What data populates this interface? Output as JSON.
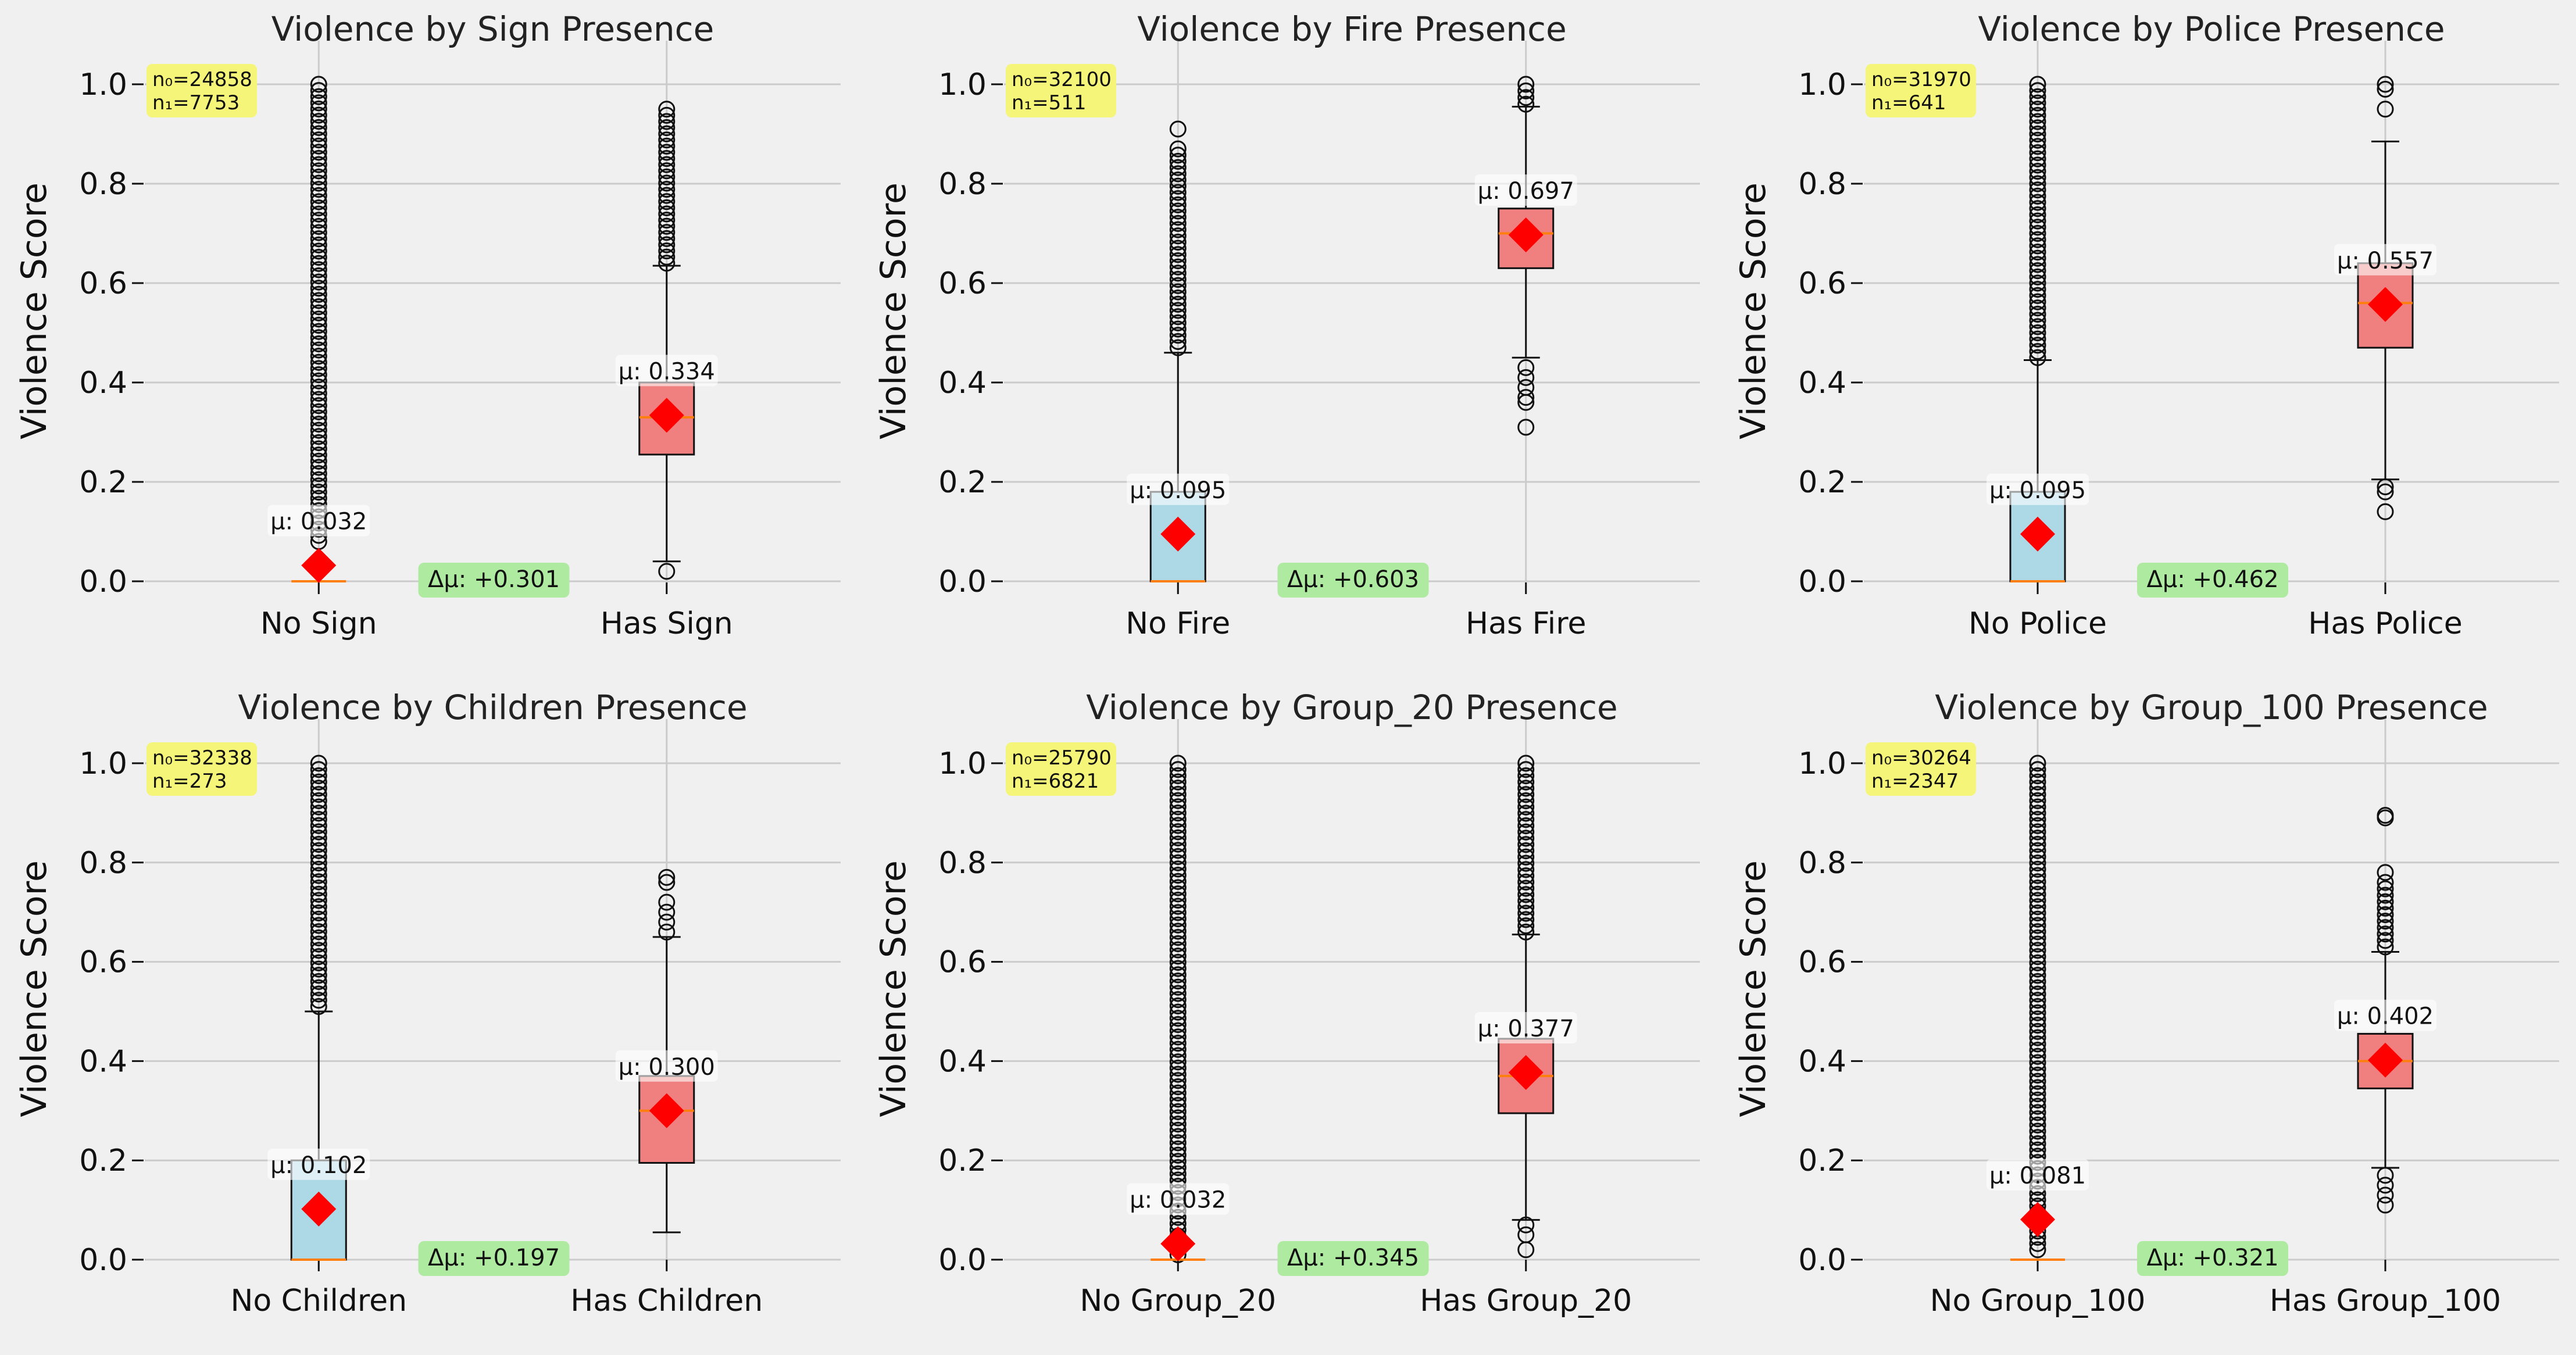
{
  "colors": {
    "background": "#f0f0f0",
    "grid": "#cbcbcb",
    "box_no": "#add8e6",
    "box_has": "#f08080",
    "mean_marker": "#ff0000",
    "median_line": "#ff7f0e",
    "count_badge": "#f5f57a",
    "delta_badge": "#aeeaa0"
  },
  "chart_data": [
    {
      "type": "box",
      "title": "Violence by Sign Presence",
      "ylabel": "Violence Score",
      "ylim": [
        0,
        1.05
      ],
      "yticks": [
        "0.0",
        "0.2",
        "0.4",
        "0.6",
        "0.8",
        "1.0"
      ],
      "categories": [
        "No Sign",
        "Has Sign"
      ],
      "counts": [
        "n₀=24858",
        "n₁=7753"
      ],
      "delta_label": "Δμ: +0.301",
      "groups": [
        {
          "q1": 0.0,
          "median": 0.0,
          "q3": 0.0,
          "whisker_low": 0.0,
          "whisker_high": 0.0,
          "outlier_range": [
            0.08,
            1.0
          ],
          "mean": 0.032,
          "mean_label": "μ: 0.032"
        },
        {
          "q1": 0.255,
          "median": 0.33,
          "q3": 0.4,
          "whisker_low": 0.04,
          "whisker_high": 0.635,
          "outlier_range": [
            0.64,
            0.95
          ],
          "outliers": [
            0.02
          ],
          "mean": 0.334,
          "mean_label": "μ: 0.334"
        }
      ]
    },
    {
      "type": "box",
      "title": "Violence by Fire Presence",
      "ylabel": "Violence Score",
      "ylim": [
        0,
        1.05
      ],
      "yticks": [
        "0.0",
        "0.2",
        "0.4",
        "0.6",
        "0.8",
        "1.0"
      ],
      "categories": [
        "No Fire",
        "Has Fire"
      ],
      "counts": [
        "n₀=32100",
        "n₁=511"
      ],
      "delta_label": "Δμ: +0.603",
      "groups": [
        {
          "q1": 0.0,
          "median": 0.0,
          "q3": 0.18,
          "whisker_low": 0.0,
          "whisker_high": 0.46,
          "outlier_range": [
            0.47,
            0.87
          ],
          "outliers": [
            0.91
          ],
          "mean": 0.095,
          "mean_label": "μ: 0.095"
        },
        {
          "q1": 0.63,
          "median": 0.7,
          "q3": 0.75,
          "whisker_low": 0.45,
          "whisker_high": 0.955,
          "outlier_range": [
            0.96,
            1.0
          ],
          "outliers": [
            0.43,
            0.41,
            0.39,
            0.37,
            0.36,
            0.31
          ],
          "mean": 0.697,
          "mean_label": "μ: 0.697"
        }
      ]
    },
    {
      "type": "box",
      "title": "Violence by Police Presence",
      "ylabel": "Violence Score",
      "ylim": [
        0,
        1.05
      ],
      "yticks": [
        "0.0",
        "0.2",
        "0.4",
        "0.6",
        "0.8",
        "1.0"
      ],
      "categories": [
        "No Police",
        "Has Police"
      ],
      "counts": [
        "n₀=31970",
        "n₁=641"
      ],
      "delta_label": "Δμ: +0.462",
      "groups": [
        {
          "q1": 0.0,
          "median": 0.0,
          "q3": 0.18,
          "whisker_low": 0.0,
          "whisker_high": 0.445,
          "outlier_range": [
            0.45,
            1.0
          ],
          "mean": 0.095,
          "mean_label": "μ: 0.095"
        },
        {
          "q1": 0.47,
          "median": 0.56,
          "q3": 0.64,
          "whisker_low": 0.205,
          "whisker_high": 0.885,
          "outliers": [
            1.0,
            0.99,
            0.95,
            0.19,
            0.18,
            0.14
          ],
          "mean": 0.557,
          "mean_label": "μ: 0.557"
        }
      ]
    },
    {
      "type": "box",
      "title": "Violence by Children Presence",
      "ylabel": "Violence Score",
      "ylim": [
        0,
        1.05
      ],
      "yticks": [
        "0.0",
        "0.2",
        "0.4",
        "0.6",
        "0.8",
        "1.0"
      ],
      "categories": [
        "No Children",
        "Has Children"
      ],
      "counts": [
        "n₀=32338",
        "n₁=273"
      ],
      "delta_label": "Δμ: +0.197",
      "groups": [
        {
          "q1": 0.0,
          "median": 0.0,
          "q3": 0.2,
          "whisker_low": 0.0,
          "whisker_high": 0.5,
          "outlier_range": [
            0.51,
            1.0
          ],
          "mean": 0.102,
          "mean_label": "μ: 0.102"
        },
        {
          "q1": 0.195,
          "median": 0.3,
          "q3": 0.37,
          "whisker_low": 0.055,
          "whisker_high": 0.65,
          "outliers": [
            0.66,
            0.68,
            0.7,
            0.72,
            0.76,
            0.77
          ],
          "mean": 0.3,
          "mean_label": "μ: 0.300"
        }
      ]
    },
    {
      "type": "box",
      "title": "Violence by Group_20 Presence",
      "ylabel": "Violence Score",
      "ylim": [
        0,
        1.05
      ],
      "yticks": [
        "0.0",
        "0.2",
        "0.4",
        "0.6",
        "0.8",
        "1.0"
      ],
      "categories": [
        "No Group_20",
        "Has Group_20"
      ],
      "counts": [
        "n₀=25790",
        "n₁=6821"
      ],
      "delta_label": "Δμ: +0.345",
      "groups": [
        {
          "q1": 0.0,
          "median": 0.0,
          "q3": 0.0,
          "whisker_low": 0.0,
          "whisker_high": 0.0,
          "outlier_range": [
            0.01,
            1.0
          ],
          "mean": 0.032,
          "mean_label": "μ: 0.032"
        },
        {
          "q1": 0.295,
          "median": 0.37,
          "q3": 0.445,
          "whisker_low": 0.08,
          "whisker_high": 0.655,
          "outlier_range": [
            0.66,
            1.0
          ],
          "outliers": [
            0.07,
            0.05,
            0.02
          ],
          "mean": 0.377,
          "mean_label": "μ: 0.377"
        }
      ]
    },
    {
      "type": "box",
      "title": "Violence by Group_100 Presence",
      "ylabel": "Violence Score",
      "ylim": [
        0,
        1.05
      ],
      "yticks": [
        "0.0",
        "0.2",
        "0.4",
        "0.6",
        "0.8",
        "1.0"
      ],
      "categories": [
        "No Group_100",
        "Has Group_100"
      ],
      "counts": [
        "n₀=30264",
        "n₁=2347"
      ],
      "delta_label": "Δμ: +0.321",
      "groups": [
        {
          "q1": 0.0,
          "median": 0.0,
          "q3": 0.0,
          "whisker_low": 0.0,
          "whisker_high": 0.0,
          "outlier_range": [
            0.02,
            1.0
          ],
          "mean": 0.081,
          "mean_label": "μ: 0.081"
        },
        {
          "q1": 0.345,
          "median": 0.4,
          "q3": 0.455,
          "whisker_low": 0.185,
          "whisker_high": 0.62,
          "outlier_range": [
            0.63,
            0.76
          ],
          "outliers": [
            0.78,
            0.89,
            0.895,
            0.17,
            0.15,
            0.13,
            0.11
          ],
          "mean": 0.402,
          "mean_label": "μ: 0.402"
        }
      ]
    }
  ]
}
